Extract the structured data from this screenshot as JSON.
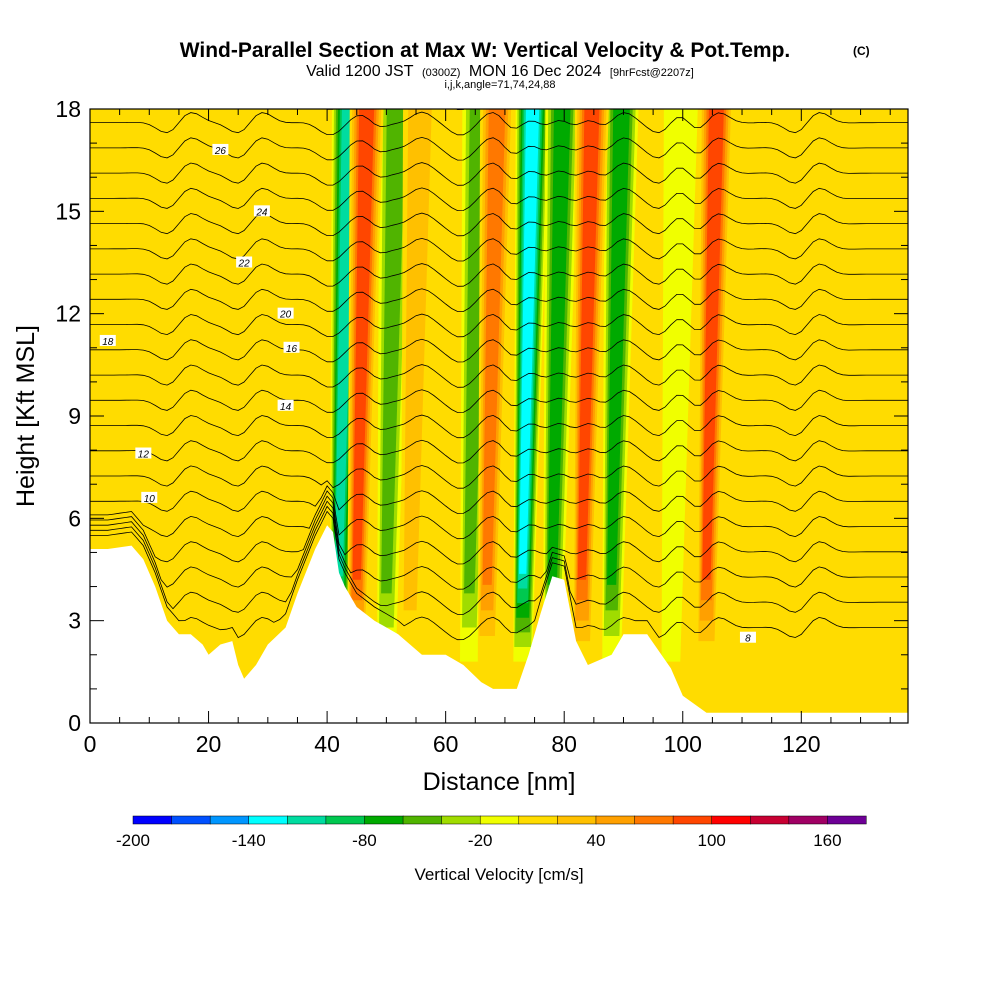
{
  "title": {
    "main": "Wind-Parallel Section at Max W: Vertical Velocity & Pot.Temp.",
    "tag": "(C)",
    "valid_prefix": "Valid 1200 JST",
    "valid_zulu": "(0300Z)",
    "valid_date": "MON 16 Dec 2024",
    "forecast": "[9hrFcst@2207z]",
    "params": "i,j,k,angle=71,74,24,88"
  },
  "chart_data": {
    "type": "heatmap",
    "xlabel": "Distance [nm]",
    "ylabel": "Height [Kft MSL]",
    "xlim": [
      0,
      138
    ],
    "ylim": [
      0,
      18
    ],
    "x_ticks": [
      0,
      20,
      40,
      60,
      80,
      100,
      120
    ],
    "y_ticks": [
      0,
      3,
      6,
      9,
      12,
      15,
      18
    ],
    "x_tick_labels": [
      "0",
      "20",
      "40",
      "60",
      "80",
      "100",
      "120"
    ],
    "y_tick_labels": [
      "0",
      "3",
      "6",
      "9",
      "12",
      "15",
      "18"
    ],
    "field": "Vertical Velocity",
    "colorbar": {
      "label": "Vertical Velocity [cm/s]",
      "levels": [
        -200,
        -180,
        -160,
        -140,
        -120,
        -100,
        -80,
        -60,
        -40,
        -20,
        0,
        20,
        40,
        60,
        80,
        100,
        120,
        140,
        160,
        180
      ],
      "tick_values": [
        -200,
        -140,
        -80,
        -20,
        40,
        100,
        160
      ],
      "tick_labels": [
        "-200",
        "-140",
        "-80",
        "-20",
        "40",
        "100",
        "160"
      ],
      "colors": [
        "#0000ff",
        "#0050ff",
        "#0096ff",
        "#00ffff",
        "#00dca0",
        "#00c850",
        "#00aa00",
        "#50b400",
        "#a0dc00",
        "#f0ff00",
        "#ffdc00",
        "#ffc000",
        "#ffa000",
        "#ff7800",
        "#ff4600",
        "#ff0000",
        "#c80032",
        "#a00064",
        "#6e0096"
      ]
    },
    "updraft_bands": [
      {
        "x": 15,
        "w_cm_s": 20
      },
      {
        "x": 27,
        "w_cm_s": 20
      },
      {
        "x": 45,
        "w_cm_s": 110
      },
      {
        "x": 54,
        "w_cm_s": 50
      },
      {
        "x": 67,
        "w_cm_s": 90
      },
      {
        "x": 83,
        "w_cm_s": 100
      },
      {
        "x": 104,
        "w_cm_s": 100
      },
      {
        "x": 121,
        "w_cm_s": 30
      }
    ],
    "downdraft_bands": [
      {
        "x": 42,
        "w_cm_s": -130
      },
      {
        "x": 50,
        "w_cm_s": -60
      },
      {
        "x": 64,
        "w_cm_s": -70
      },
      {
        "x": 73,
        "w_cm_s": -150
      },
      {
        "x": 78,
        "w_cm_s": -90
      },
      {
        "x": 88,
        "w_cm_s": -80
      },
      {
        "x": 98,
        "w_cm_s": -30
      }
    ],
    "terrain_top_kft": [
      [
        0,
        5.1
      ],
      [
        3,
        5.1
      ],
      [
        7,
        5.2
      ],
      [
        9,
        4.8
      ],
      [
        11,
        4.0
      ],
      [
        13,
        3.0
      ],
      [
        15,
        2.6
      ],
      [
        17,
        2.6
      ],
      [
        19,
        2.3
      ],
      [
        20,
        2.0
      ],
      [
        22,
        2.3
      ],
      [
        24,
        2.4
      ],
      [
        25,
        1.7
      ],
      [
        26,
        1.3
      ],
      [
        28,
        1.7
      ],
      [
        30,
        2.3
      ],
      [
        33,
        2.8
      ],
      [
        35,
        3.8
      ],
      [
        38,
        5.1
      ],
      [
        40,
        5.8
      ],
      [
        41,
        5.6
      ],
      [
        42,
        4.4
      ],
      [
        43,
        4.0
      ],
      [
        45,
        3.4
      ],
      [
        48,
        3.0
      ],
      [
        52,
        2.6
      ],
      [
        56,
        2.0
      ],
      [
        60,
        2.0
      ],
      [
        63,
        1.7
      ],
      [
        66,
        1.2
      ],
      [
        68,
        1.0
      ],
      [
        70,
        1.0
      ],
      [
        72,
        1.0
      ],
      [
        74,
        2.0
      ],
      [
        76,
        3.2
      ],
      [
        78,
        4.3
      ],
      [
        80,
        4.2
      ],
      [
        82,
        2.4
      ],
      [
        84,
        1.7
      ],
      [
        88,
        2.0
      ],
      [
        90,
        2.6
      ],
      [
        94,
        2.6
      ],
      [
        98,
        1.6
      ],
      [
        100,
        0.8
      ],
      [
        104,
        0.3
      ],
      [
        110,
        0.3
      ],
      [
        116,
        0.3
      ],
      [
        124,
        0.3
      ],
      [
        138,
        0.3
      ]
    ],
    "theta_contours": [
      {
        "level": "8",
        "label_x": 111,
        "label_y": 2.5
      },
      {
        "level": "10",
        "label_x": 10,
        "label_y": 6.6
      },
      {
        "level": "12",
        "label_x": 9,
        "label_y": 7.9
      },
      {
        "level": "14",
        "label_x": 33,
        "label_y": 9.3
      },
      {
        "level": "16",
        "label_x": 34,
        "label_y": 11.0
      },
      {
        "level": "18",
        "label_x": 3,
        "label_y": 11.2
      },
      {
        "level": "20",
        "label_x": 33,
        "label_y": 12.0
      },
      {
        "level": "22",
        "label_x": 26,
        "label_y": 13.5
      },
      {
        "level": "24",
        "label_x": 29,
        "label_y": 15.0
      },
      {
        "level": "26",
        "label_x": 22,
        "label_y": 16.8
      }
    ]
  }
}
